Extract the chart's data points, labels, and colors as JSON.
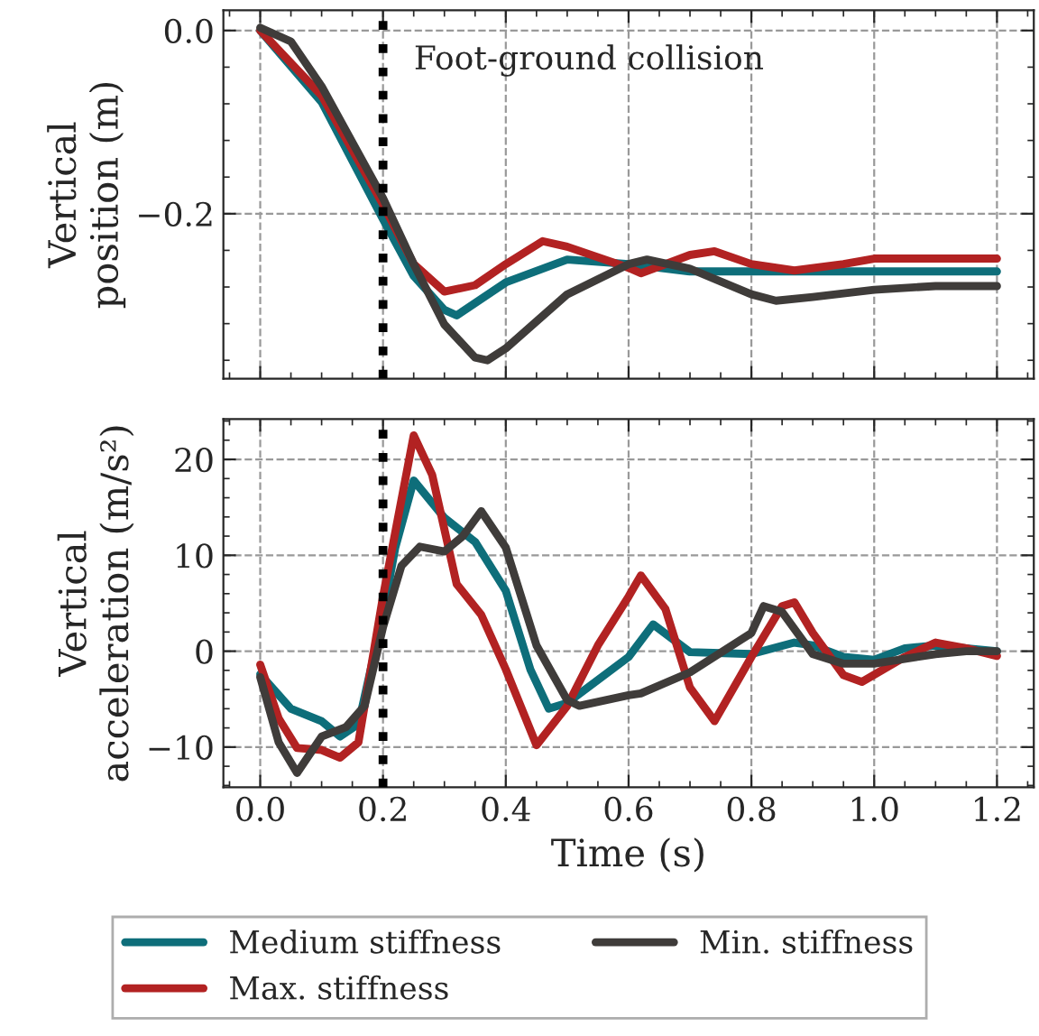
{
  "chart_data": [
    {
      "type": "line",
      "ylabel": "Vertical\nposition (m)",
      "annotations": [
        "Foot-ground collision"
      ],
      "xlim": [
        -0.06,
        1.26
      ],
      "ylim": [
        -0.38,
        0.022
      ],
      "xticks": [
        {
          "value": 0,
          "label": null
        },
        {
          "value": 0.2,
          "label": null
        },
        {
          "value": 0.4,
          "label": null
        },
        {
          "value": 0.6,
          "label": null
        },
        {
          "value": 0.8,
          "label": null
        },
        {
          "value": 1.0,
          "label": null
        },
        {
          "value": 1.2,
          "label": null
        }
      ],
      "yticks": [
        {
          "value": -0.2,
          "label": "−0.2"
        },
        {
          "value": 0,
          "label": "0.0"
        }
      ],
      "tick_labels": "y",
      "grid": true,
      "legend": "bottom",
      "line_style": "solid",
      "ref_lines": [
        {
          "axis": "x",
          "value": 0.2,
          "color": "#000000",
          "line_style": "dotted"
        }
      ],
      "series": [
        {
          "name": "Medium stiffness",
          "color": "#0e6e7a",
          "x": [
            0,
            0.1,
            0.2,
            0.25,
            0.3,
            0.32,
            0.4,
            0.5,
            0.6,
            0.7,
            0.8,
            1.2
          ],
          "values": [
            0,
            -0.078,
            -0.206,
            -0.268,
            -0.305,
            -0.311,
            -0.275,
            -0.25,
            -0.255,
            -0.263,
            -0.263,
            -0.263
          ]
        },
        {
          "name": "Max. stiffness",
          "color": "#b22222",
          "x": [
            0,
            0.1,
            0.2,
            0.25,
            0.3,
            0.35,
            0.4,
            0.46,
            0.5,
            0.6,
            0.62,
            0.7,
            0.74,
            0.8,
            0.87,
            0.95,
            1.0,
            1.2
          ],
          "values": [
            0,
            -0.071,
            -0.19,
            -0.255,
            -0.285,
            -0.278,
            -0.255,
            -0.23,
            -0.236,
            -0.259,
            -0.265,
            -0.245,
            -0.241,
            -0.255,
            -0.262,
            -0.255,
            -0.249,
            -0.249
          ]
        },
        {
          "name": "Min. stiffness",
          "color": "#3f3c3a",
          "x": [
            0,
            0.05,
            0.1,
            0.2,
            0.25,
            0.3,
            0.35,
            0.37,
            0.4,
            0.5,
            0.6,
            0.63,
            0.7,
            0.8,
            0.84,
            0.9,
            1.0,
            1.1,
            1.2
          ],
          "values": [
            0.003,
            -0.012,
            -0.061,
            -0.183,
            -0.255,
            -0.321,
            -0.357,
            -0.36,
            -0.347,
            -0.288,
            -0.255,
            -0.25,
            -0.26,
            -0.288,
            -0.295,
            -0.291,
            -0.283,
            -0.279,
            -0.279
          ]
        }
      ]
    },
    {
      "type": "line",
      "xlabel": "Time (s)",
      "ylabel": "Vertical\nacceleration (m/s²)",
      "xlim": [
        -0.06,
        1.26
      ],
      "ylim": [
        -14.2,
        24.2
      ],
      "xticks": [
        {
          "value": 0,
          "label": "0.0"
        },
        {
          "value": 0.2,
          "label": "0.2"
        },
        {
          "value": 0.4,
          "label": "0.4"
        },
        {
          "value": 0.6,
          "label": "0.6"
        },
        {
          "value": 0.8,
          "label": "0.8"
        },
        {
          "value": 1.0,
          "label": "1.0"
        },
        {
          "value": 1.2,
          "label": "1.2"
        }
      ],
      "yticks": [
        {
          "value": -10,
          "label": "−10"
        },
        0,
        10,
        20
      ],
      "grid": true,
      "line_style": "solid",
      "ref_lines": [
        {
          "axis": "x",
          "value": 0.2,
          "color": "#000000",
          "line_style": "dotted"
        }
      ],
      "series": [
        {
          "color": "#0e6e7a",
          "x": [
            0,
            0.05,
            0.1,
            0.13,
            0.16,
            0.2,
            0.22,
            0.25,
            0.3,
            0.35,
            0.4,
            0.44,
            0.47,
            0.5,
            0.6,
            0.64,
            0.7,
            0.8,
            0.87,
            0.9,
            0.95,
            1.0,
            1.05,
            1.1,
            1.2
          ],
          "values": [
            -2.4,
            -6,
            -7.3,
            -8.9,
            -7.6,
            3.8,
            10.8,
            17.8,
            13.9,
            11.4,
            6.3,
            -1.9,
            -6,
            -5.4,
            -0.6,
            2.8,
            -0.1,
            -0.3,
            0.9,
            0.6,
            -0.6,
            -0.9,
            0.3,
            0.6,
            0
          ]
        },
        {
          "color": "#b22222",
          "x": [
            0,
            0.03,
            0.06,
            0.1,
            0.13,
            0.16,
            0.2,
            0.25,
            0.28,
            0.32,
            0.36,
            0.4,
            0.45,
            0.5,
            0.55,
            0.6,
            0.62,
            0.66,
            0.7,
            0.74,
            0.8,
            0.85,
            0.87,
            0.9,
            0.95,
            0.98,
            1.05,
            1.1,
            1.15,
            1.2
          ],
          "values": [
            -1.4,
            -7,
            -10.1,
            -10.3,
            -11.1,
            -9.5,
            5.7,
            22.5,
            18.4,
            7,
            3.8,
            -1.9,
            -9.8,
            -5.7,
            0.6,
            5.7,
            7.9,
            4.4,
            -3.8,
            -7.3,
            -0.6,
            4.7,
            5.1,
            1.9,
            -2.5,
            -3.2,
            -0.6,
            0.9,
            0.3,
            -0.5
          ]
        },
        {
          "color": "#3f3c3a",
          "x": [
            0,
            0.03,
            0.06,
            0.1,
            0.14,
            0.17,
            0.2,
            0.23,
            0.26,
            0.3,
            0.33,
            0.36,
            0.4,
            0.45,
            0.5,
            0.52,
            0.6,
            0.62,
            0.7,
            0.8,
            0.82,
            0.85,
            0.9,
            0.95,
            1.0,
            1.1,
            1.15,
            1.2
          ],
          "values": [
            -2.7,
            -9.5,
            -12.7,
            -8.9,
            -7.9,
            -5.7,
            2.5,
            8.9,
            10.9,
            10.4,
            12,
            14.6,
            10.8,
            0.6,
            -5.1,
            -5.7,
            -4.6,
            -4.4,
            -2.2,
            1.9,
            4.7,
            4.1,
            -0.3,
            -1.3,
            -1.3,
            -0.3,
            0,
            0
          ]
        }
      ]
    }
  ]
}
